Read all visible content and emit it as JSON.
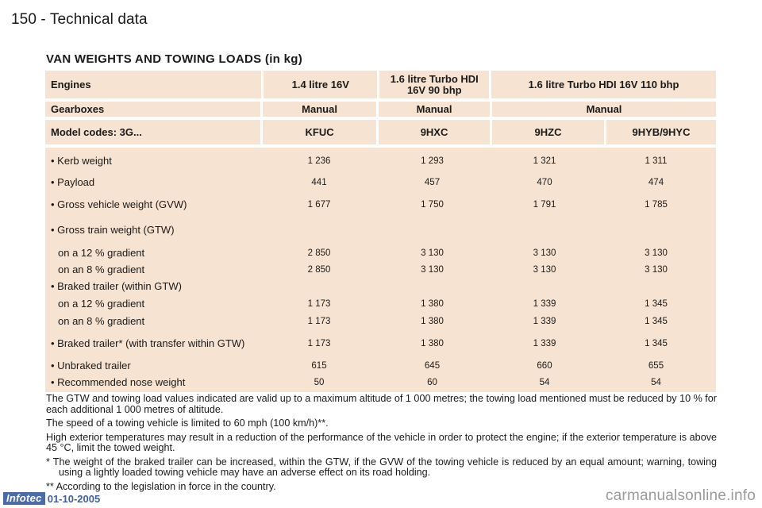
{
  "header": {
    "page_title": "150 - Technical data"
  },
  "section": {
    "title": "VAN WEIGHTS AND TOWING LOADS (in kg)"
  },
  "table": {
    "engines": {
      "label": "Engines",
      "e1": "1.4 litre 16V",
      "e2": "1.6 litre Turbo HDI 16V 90 bhp",
      "e34": "1.6 litre Turbo HDI 16V 110 bhp"
    },
    "gearboxes": {
      "label": "Gearboxes",
      "g1": "Manual",
      "g2": "Manual",
      "g34": "Manual"
    },
    "models": {
      "label": "Model codes: 3G...",
      "m1": "KFUC",
      "m2": "9HXC",
      "m3": "9HZC",
      "m4": "9HYB/9HYC"
    },
    "rows": [
      {
        "label": "• Kerb weight",
        "values": [
          "1 236",
          "1 293",
          "1 321",
          "1 311"
        ]
      },
      {
        "label": "• Payload",
        "values": [
          "441",
          "457",
          "470",
          "474"
        ]
      },
      {
        "label": "• Gross vehicle weight (GVW)",
        "values": [
          "1 677",
          "1 750",
          "1 791",
          "1 785"
        ]
      },
      {
        "label": "• Gross train weight (GTW)",
        "values": [
          "",
          "",
          "",
          ""
        ]
      },
      {
        "label": "on a 12 % gradient",
        "values": [
          "2 850",
          "3 130",
          "3 130",
          "3 130"
        ]
      },
      {
        "label": "on an 8 % gradient",
        "values": [
          "2 850",
          "3 130",
          "3 130",
          "3 130"
        ]
      },
      {
        "label": "• Braked trailer (within GTW)",
        "values": [
          "",
          "",
          "",
          ""
        ]
      },
      {
        "label": "on a 12 % gradient",
        "values": [
          "1 173",
          "1 380",
          "1 339",
          "1 345"
        ]
      },
      {
        "label": "on an 8 % gradient",
        "values": [
          "1 173",
          "1 380",
          "1 339",
          "1 345"
        ]
      },
      {
        "label": "• Braked trailer* (with transfer within GTW)",
        "values": [
          "1 173",
          "1 380",
          "1 339",
          "1 345"
        ]
      },
      {
        "label": "• Unbraked trailer",
        "values": [
          "615",
          "645",
          "660",
          "655"
        ]
      },
      {
        "label": "• Recommended nose weight",
        "values": [
          "50",
          "60",
          "54",
          "54"
        ]
      }
    ]
  },
  "notes": {
    "p1": "The GTW and towing load values indicated are valid up to a maximum altitude of 1 000 metres; the towing load mentioned must be reduced by 10 % for each additional 1 000 metres of altitude.",
    "p2": "The speed of a towing vehicle is limited to 60 mph (100 km/h)**.",
    "p3": "High exterior temperatures may result in a reduction of the performance of the vehicle in order to protect the engine; if the exterior temperature is above 45 °C, limit the towed weight.",
    "fn1": "* The weight of the braked trailer can be increased, within the GTW, if the GVW of the towing vehicle is reduced by an equal amount; warning, towing using a lightly loaded towing vehicle may have an adverse effect on its road holding.",
    "fn2": "** According to the legislation in force in the country."
  },
  "footer": {
    "logo_text": "Infotec",
    "date": "01-10-2005",
    "watermark": "carmanualsonline.info"
  }
}
